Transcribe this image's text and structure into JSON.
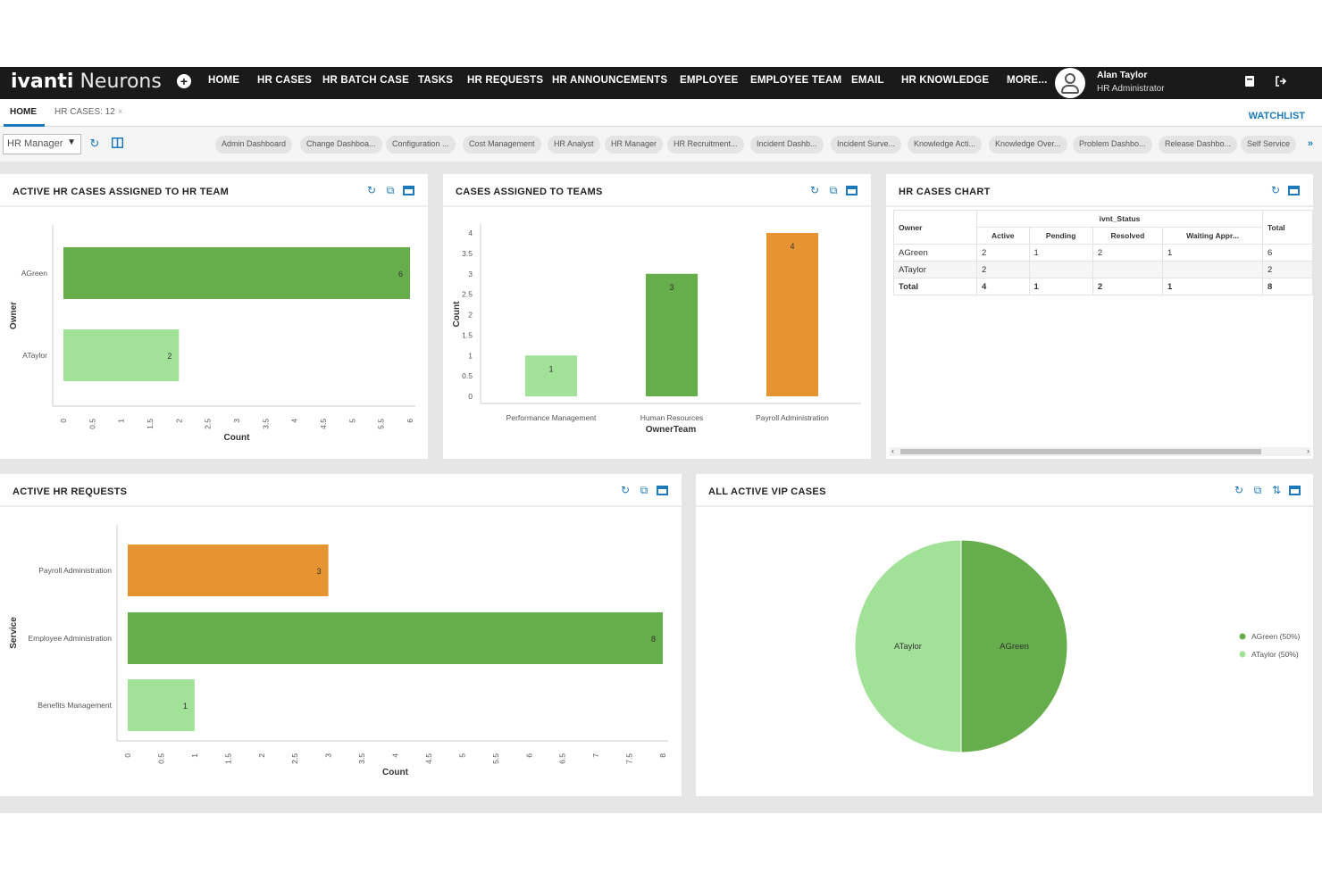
{
  "app": {
    "brand": "ivanti",
    "product": "Neurons"
  },
  "nav": {
    "items": [
      "HOME",
      "HR CASES",
      "HR BATCH CASE",
      "TASKS",
      "HR REQUESTS",
      "HR ANNOUNCEMENTS",
      "EMPLOYEE",
      "EMPLOYEE TEAM",
      "EMAIL",
      "HR KNOWLEDGE",
      "MORE..."
    ],
    "add_icon": "plus-circle-icon"
  },
  "user": {
    "name": "Alan Taylor",
    "role": "HR Administrator"
  },
  "tabs": {
    "home": "HOME",
    "hr_cases": "HR CASES: 12",
    "close_glyph": "×",
    "watchlist": "WATCHLIST"
  },
  "toolbar": {
    "role_select": "HR Manager",
    "dashboards": [
      "Admin Dashboard",
      "Change Dashboa...",
      "Configuration ...",
      "Cost Management",
      "HR Analyst",
      "HR Manager",
      "HR Recruitment...",
      "Incident Dashb...",
      "Incident Surve...",
      "Knowledge Acti...",
      "Knowledge Over...",
      "Problem Dashbo...",
      "Release Dashbo...",
      "Self Service"
    ],
    "more_glyph": "»"
  },
  "colors": {
    "green_dark": "#66ad4b",
    "green_light": "#a2e298",
    "orange": "#e69432",
    "accent": "#1c7ab8",
    "nav_bg": "#1a1a1a"
  },
  "panels": {
    "active_hr_cases": {
      "title": "ACTIVE HR CASES ASSIGNED TO HR TEAM"
    },
    "cases_to_teams": {
      "title": "CASES ASSIGNED TO TEAMS"
    },
    "hr_cases_chart": {
      "title": "HR CASES CHART",
      "table": {
        "owner_header": "Owner",
        "group_header": "ivnt_Status",
        "columns": [
          "Active",
          "Pending",
          "Resolved",
          "Waiting Appr...",
          "Total"
        ],
        "rows": [
          {
            "owner": "AGreen",
            "values": [
              "2",
              "1",
              "2",
              "1",
              "6"
            ]
          },
          {
            "owner": "ATaylor",
            "values": [
              "2",
              "",
              "",
              "",
              "2"
            ]
          }
        ],
        "total": {
          "owner": "Total",
          "values": [
            "4",
            "1",
            "2",
            "1",
            "8"
          ]
        }
      }
    },
    "active_hr_requests": {
      "title": "ACTIVE HR REQUESTS"
    },
    "vip_cases": {
      "title": "ALL ACTIVE VIP CASES"
    }
  },
  "chart_data": [
    {
      "type": "bar",
      "orientation": "horizontal",
      "categories": [
        "AGreen",
        "ATaylor"
      ],
      "values": [
        6,
        2
      ],
      "colors": [
        "#66ad4b",
        "#a2e298"
      ],
      "xlabel": "Count",
      "ylabel": "Owner",
      "xlim": [
        0,
        6
      ],
      "ticks": [
        "0",
        "0.5",
        "1",
        "1.5",
        "2",
        "2.5",
        "3",
        "3.5",
        "4",
        "4.5",
        "5",
        "5.5",
        "6"
      ]
    },
    {
      "type": "bar",
      "orientation": "vertical",
      "categories": [
        "Performance Management",
        "Human Resources",
        "Payroll Administration"
      ],
      "values": [
        1,
        3,
        4
      ],
      "colors": [
        "#a2e298",
        "#66ad4b",
        "#e69432"
      ],
      "xlabel": "OwnerTeam",
      "ylabel": "Count",
      "ylim": [
        0,
        4
      ],
      "ticks": [
        "0",
        "0.5",
        "1",
        "1.5",
        "2",
        "2.5",
        "3",
        "3.5",
        "4"
      ]
    },
    {
      "type": "bar",
      "orientation": "horizontal",
      "categories": [
        "Payroll Administration",
        "Employee Administration",
        "Benefits Management"
      ],
      "values": [
        3,
        8,
        1
      ],
      "colors": [
        "#e69432",
        "#66ad4b",
        "#a2e298"
      ],
      "xlabel": "Count",
      "ylabel": "Service",
      "xlim": [
        0,
        8
      ],
      "ticks": [
        "0",
        "0.5",
        "1",
        "1.5",
        "2",
        "2.5",
        "3",
        "3.5",
        "4",
        "4.5",
        "5",
        "5.5",
        "6",
        "6.5",
        "7",
        "7.5",
        "8"
      ]
    },
    {
      "type": "pie",
      "slices": [
        {
          "label": "AGreen",
          "value": 50,
          "color": "#66ad4b"
        },
        {
          "label": "ATaylor",
          "value": 50,
          "color": "#a2e298"
        }
      ],
      "legend": [
        "AGreen (50%)",
        "ATaylor (50%)"
      ],
      "legend_position": "right"
    }
  ]
}
